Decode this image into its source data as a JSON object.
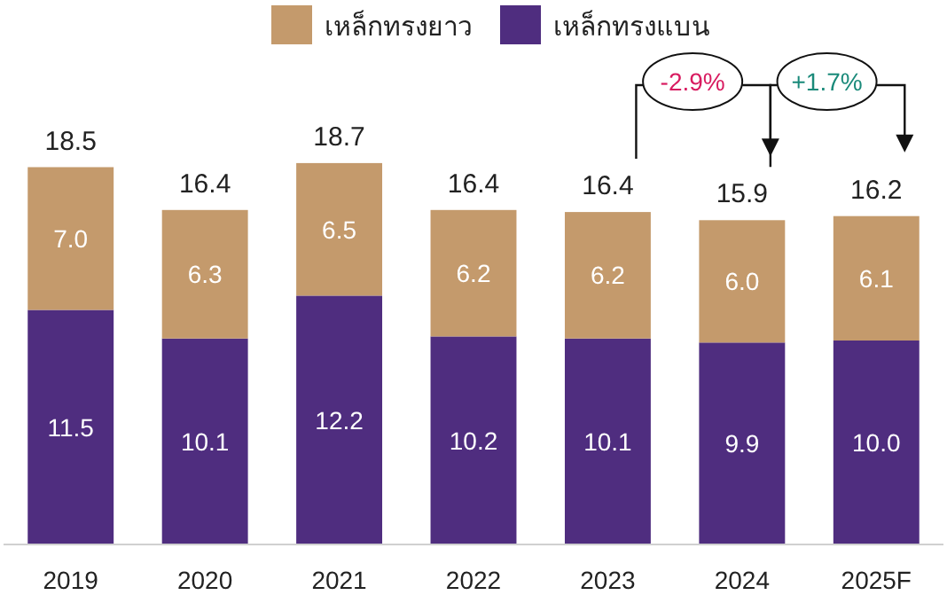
{
  "chart_data": {
    "type": "bar",
    "stacked": true,
    "categories": [
      "2019",
      "2020",
      "2021",
      "2022",
      "2023",
      "2024",
      "2025F"
    ],
    "series": [
      {
        "name": "เหล็กทรงแบน",
        "color": "#4f2d7f",
        "values": [
          11.5,
          10.1,
          12.2,
          10.2,
          10.1,
          9.9,
          10.0
        ],
        "value_labels": [
          "11.5",
          "10.1",
          "12.2",
          "10.2",
          "10.1",
          "9.9",
          "10.0"
        ]
      },
      {
        "name": "เหล็กทรงยาว",
        "color": "#c49a6c",
        "values": [
          7.0,
          6.3,
          6.5,
          6.2,
          6.2,
          6.0,
          6.1
        ],
        "value_labels": [
          "7.0",
          "6.3",
          "6.5",
          "6.2",
          "6.2",
          "6.0",
          "6.1"
        ]
      }
    ],
    "totals": [
      "18.5",
      "16.4",
      "18.7",
      "16.4",
      "16.4",
      "15.9",
      "16.2"
    ],
    "legend": "top",
    "annotations": [
      "-2.9%",
      "+1.7%"
    ]
  }
}
